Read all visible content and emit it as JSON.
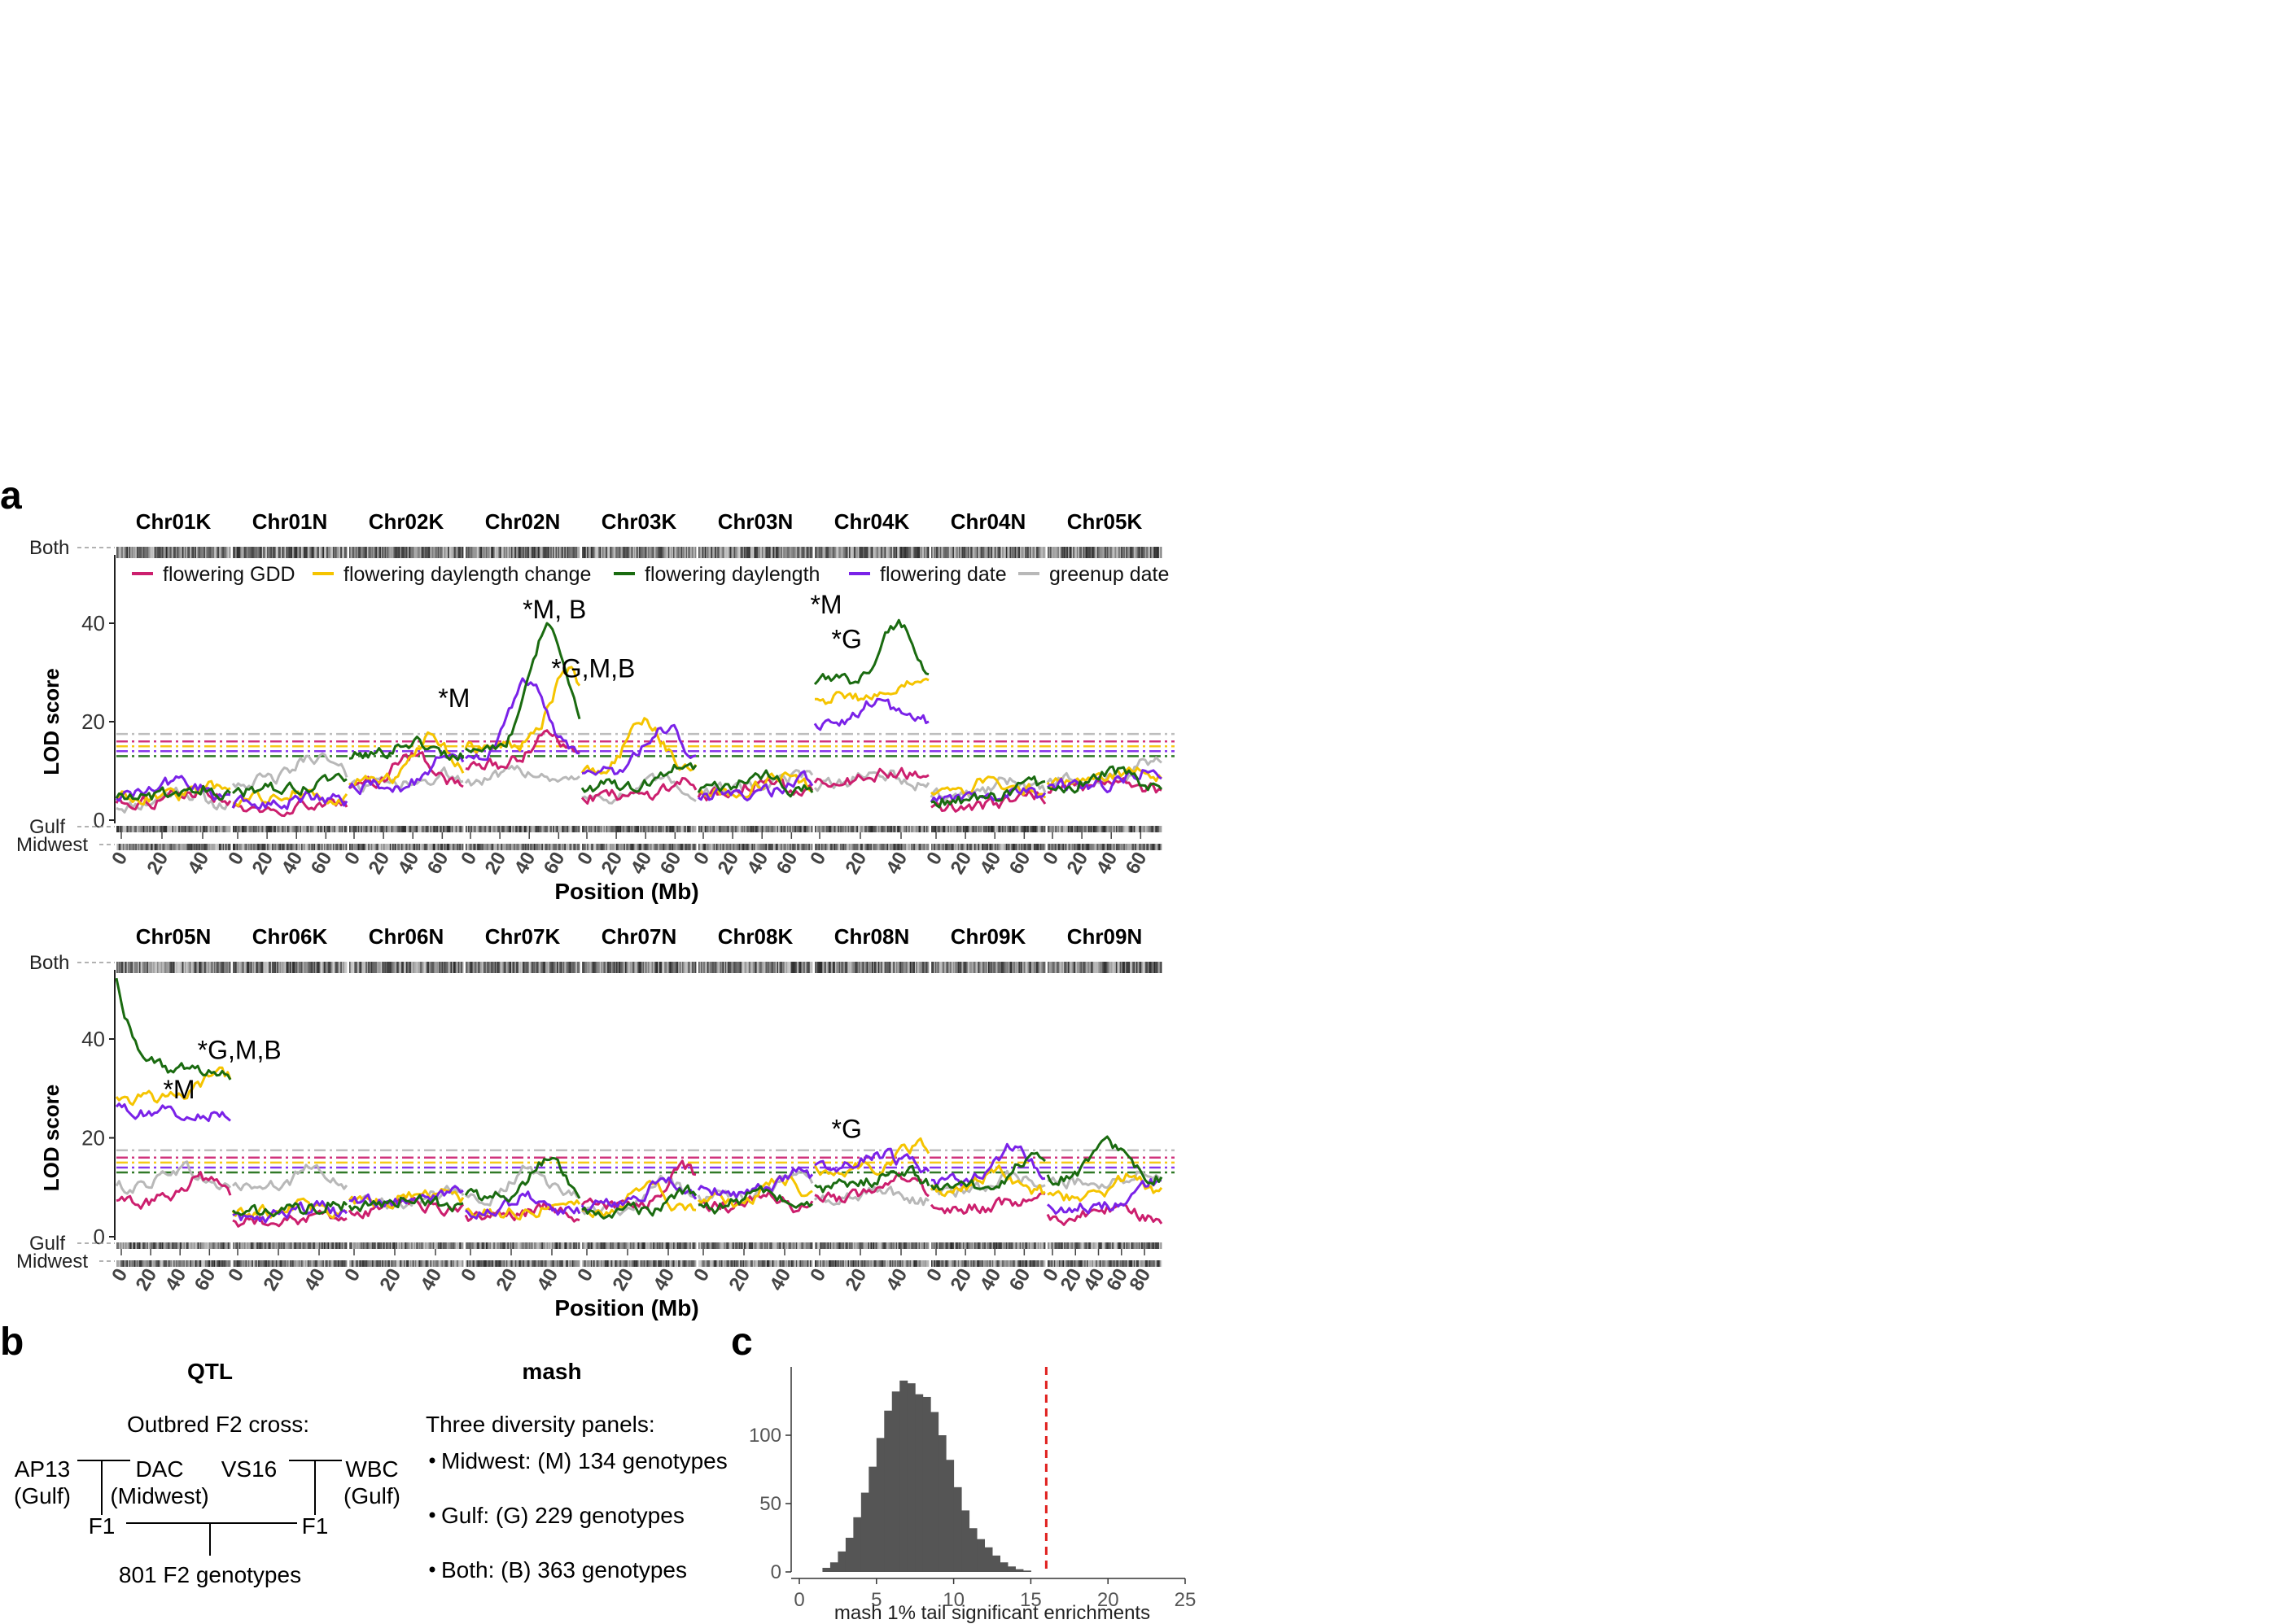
{
  "colors": {
    "flowering_gdd": "#cc1f6e",
    "flowering_daylength_change": "#f5c400",
    "flowering_daylength": "#1a6b10",
    "flowering_date": "#7a22e8",
    "greenup_date": "#b8b8b8",
    "hist_fill": "#555555",
    "threshold_line": "#e0201e"
  },
  "panel_a": {
    "label": "a",
    "ylabel": "LOD score",
    "xlabel": "Position (Mb)",
    "band_labels": {
      "both": "Both",
      "gulf": "Gulf",
      "midwest": "Midwest"
    },
    "yticks": [
      0,
      20,
      40
    ],
    "legend": [
      {
        "label": "flowering GDD",
        "color_key": "flowering_gdd"
      },
      {
        "label": "flowering daylength change",
        "color_key": "flowering_daylength_change"
      },
      {
        "label": "flowering daylength",
        "color_key": "flowering_daylength"
      },
      {
        "label": "flowering date",
        "color_key": "flowering_date"
      },
      {
        "label": "greenup date",
        "color_key": "greenup_date"
      }
    ],
    "rows": [
      {
        "chromosomes": [
          {
            "name": "Chr01K",
            "ticks": [
              "0",
              "20",
              "40"
            ]
          },
          {
            "name": "Chr01N",
            "ticks": [
              "0",
              "20",
              "40",
              "60"
            ]
          },
          {
            "name": "Chr02K",
            "ticks": [
              "0",
              "20",
              "40",
              "60"
            ]
          },
          {
            "name": "Chr02N",
            "ticks": [
              "0",
              "20",
              "40",
              "60"
            ]
          },
          {
            "name": "Chr03K",
            "ticks": [
              "0",
              "20",
              "40",
              "60"
            ]
          },
          {
            "name": "Chr03N",
            "ticks": [
              "0",
              "20",
              "40",
              "60"
            ]
          },
          {
            "name": "Chr04K",
            "ticks": [
              "0",
              "20",
              "40"
            ]
          },
          {
            "name": "Chr04N",
            "ticks": [
              "0",
              "20",
              "40",
              "60"
            ]
          },
          {
            "name": "Chr05K",
            "ticks": [
              "0",
              "20",
              "40",
              "60"
            ]
          }
        ],
        "annotations": [
          {
            "text": "*M",
            "chrom": 2,
            "pos": 0.92,
            "lod": 23
          },
          {
            "text": "*M, B",
            "chrom": 3,
            "pos": 0.78,
            "lod": 41
          },
          {
            "text": "*G,M,B",
            "chrom": 3,
            "pos": 1.12,
            "lod": 29
          },
          {
            "text": "*M",
            "chrom": 6,
            "pos": 0.1,
            "lod": 42
          },
          {
            "text": "*G",
            "chrom": 6,
            "pos": 0.28,
            "lod": 35
          }
        ]
      },
      {
        "chromosomes": [
          {
            "name": "Chr05N",
            "ticks": [
              "0",
              "20",
              "40",
              "60"
            ]
          },
          {
            "name": "Chr06K",
            "ticks": [
              "0",
              "20",
              "40"
            ]
          },
          {
            "name": "Chr06N",
            "ticks": [
              "0",
              "20",
              "40"
            ]
          },
          {
            "name": "Chr07K",
            "ticks": [
              "0",
              "20",
              "40"
            ]
          },
          {
            "name": "Chr07N",
            "ticks": [
              "0",
              "20",
              "40"
            ]
          },
          {
            "name": "Chr08K",
            "ticks": [
              "0",
              "20",
              "40"
            ]
          },
          {
            "name": "Chr08N",
            "ticks": [
              "0",
              "20",
              "40"
            ]
          },
          {
            "name": "Chr09K",
            "ticks": [
              "0",
              "20",
              "40",
              "60"
            ]
          },
          {
            "name": "Chr09N",
            "ticks": [
              "0",
              "20",
              "40",
              "60",
              "80"
            ]
          }
        ],
        "annotations": [
          {
            "text": "*M",
            "chrom": 0,
            "pos": 0.55,
            "lod": 28
          },
          {
            "text": "*G,M,B",
            "chrom": 0,
            "pos": 1.08,
            "lod": 36
          },
          {
            "text": "*G",
            "chrom": 6,
            "pos": 0.28,
            "lod": 20
          }
        ]
      }
    ]
  },
  "panel_b": {
    "label": "b",
    "qtl_title": "QTL",
    "cross_title": "Outbred F2 cross:",
    "parents": [
      {
        "name": "AP13",
        "origin": "(Gulf)"
      },
      {
        "name": "DAC",
        "origin": "(Midwest)"
      },
      {
        "name": "VS16",
        "origin": ""
      },
      {
        "name": "WBC",
        "origin": "(Gulf)"
      }
    ],
    "f1_label": "F1",
    "f2_label": "801 F2 genotypes",
    "mash_title": "mash",
    "panels_title": "Three diversity panels:",
    "panels": [
      "Midwest: (M) 134 genotypes",
      "Gulf: (G) 229 genotypes",
      "Both: (B) 363 genotypes"
    ]
  },
  "panel_c": {
    "label": "c",
    "chart_data": {
      "type": "bar",
      "xlabel": "mash 1% tail significant enrichments",
      "ylabel": "",
      "xlim": [
        0,
        25
      ],
      "ylim": [
        0,
        150
      ],
      "xticks": [
        0,
        5,
        10,
        15,
        20,
        25
      ],
      "yticks": [
        0,
        50,
        100
      ],
      "bin_width": 0.5,
      "bins_start": [
        1.5,
        2.0,
        2.5,
        3.0,
        3.5,
        4.0,
        4.5,
        5.0,
        5.5,
        6.0,
        6.5,
        7.0,
        7.5,
        8.0,
        8.5,
        9.0,
        9.5,
        10.0,
        10.5,
        11.0,
        11.5,
        12.0,
        12.5,
        13.0,
        13.5,
        14.0,
        14.5,
        15.0,
        15.5,
        16.0
      ],
      "values": [
        3,
        7,
        15,
        25,
        40,
        58,
        77,
        98,
        118,
        132,
        140,
        138,
        130,
        128,
        117,
        100,
        82,
        62,
        45,
        32,
        24,
        18,
        12,
        7,
        4,
        2,
        1,
        0,
        0,
        0
      ],
      "threshold": 16
    }
  }
}
